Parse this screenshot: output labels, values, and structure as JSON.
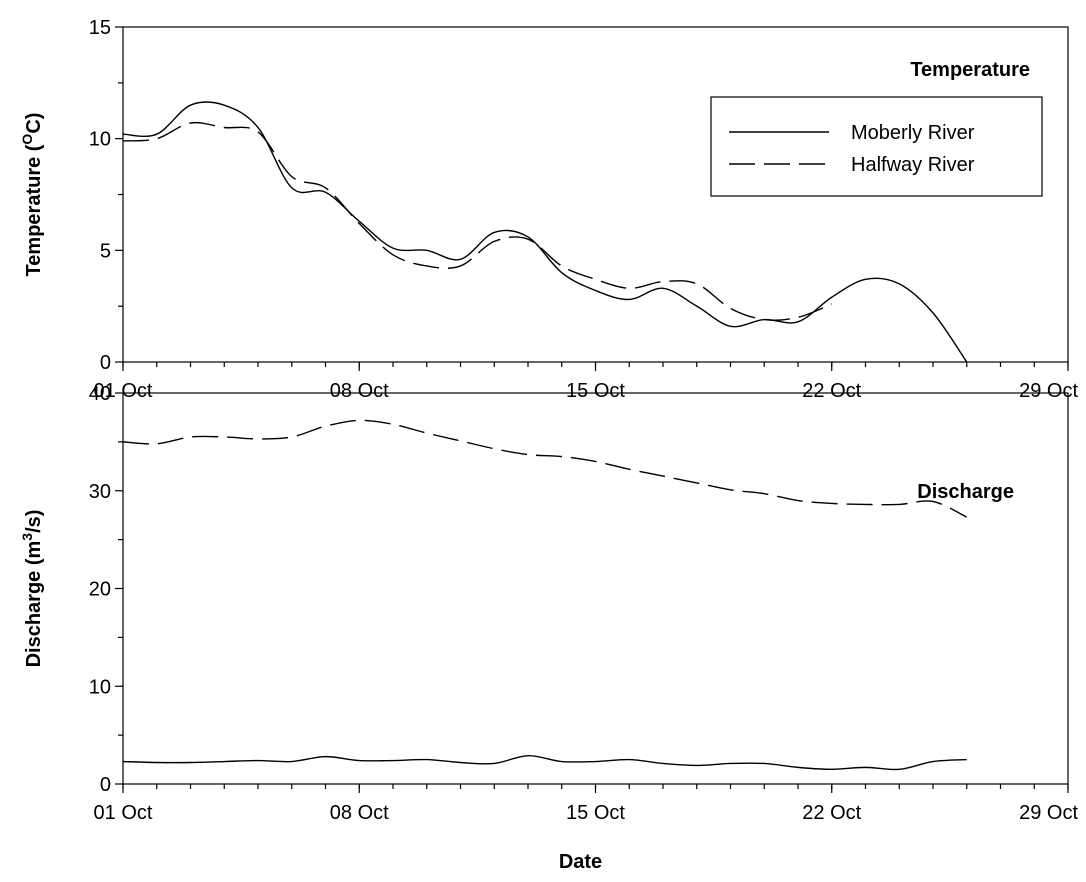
{
  "chart_data": [
    {
      "type": "line",
      "title": "Temperature",
      "xlabel": "",
      "ylabel": "Temperature (",
      "ylabel_sup": "O",
      "ylabel_tail": "C)",
      "xlim": [
        "2000-10-01",
        "2000-10-29"
      ],
      "ylim": [
        0,
        15
      ],
      "y_ticks": [
        0,
        5,
        10,
        15
      ],
      "x_ticks": [
        "01 Oct",
        "08 Oct",
        "15 Oct",
        "22 Oct",
        "29 Oct"
      ],
      "x_tick_dates": [
        "2000-10-01",
        "2000-10-08",
        "2000-10-15",
        "2000-10-22",
        "2000-10-29"
      ],
      "grid": false,
      "legend": {
        "placement": "top-right",
        "entries": [
          "Moberly River",
          "Halfway River"
        ]
      },
      "series": [
        {
          "name": "Moberly River",
          "style": "solid",
          "x": [
            "2000-10-01",
            "2000-10-02",
            "2000-10-03",
            "2000-10-04",
            "2000-10-05",
            "2000-10-06",
            "2000-10-07",
            "2000-10-08",
            "2000-10-09",
            "2000-10-10",
            "2000-10-11",
            "2000-10-12",
            "2000-10-13",
            "2000-10-14",
            "2000-10-15",
            "2000-10-16",
            "2000-10-17",
            "2000-10-18",
            "2000-10-19",
            "2000-10-20",
            "2000-10-21",
            "2000-10-22",
            "2000-10-23",
            "2000-10-24",
            "2000-10-25",
            "2000-10-26"
          ],
          "y": [
            10.2,
            10.2,
            11.5,
            11.5,
            10.5,
            7.8,
            7.6,
            6.3,
            5.1,
            5.0,
            4.6,
            5.8,
            5.6,
            4.0,
            3.2,
            2.8,
            3.3,
            2.5,
            1.6,
            1.9,
            1.8,
            2.9,
            3.7,
            3.5,
            2.2,
            0.0
          ]
        },
        {
          "name": "Halfway River",
          "style": "dashed",
          "x": [
            "2000-10-01",
            "2000-10-02",
            "2000-10-03",
            "2000-10-04",
            "2000-10-05",
            "2000-10-06",
            "2000-10-07",
            "2000-10-08",
            "2000-10-09",
            "2000-10-10",
            "2000-10-11",
            "2000-10-12",
            "2000-10-13",
            "2000-10-14",
            "2000-10-15",
            "2000-10-16",
            "2000-10-17",
            "2000-10-18",
            "2000-10-19",
            "2000-10-20",
            "2000-10-21",
            "2000-10-22"
          ],
          "y": [
            9.9,
            10.0,
            10.7,
            10.5,
            10.3,
            8.3,
            7.8,
            6.2,
            4.8,
            4.3,
            4.3,
            5.4,
            5.5,
            4.3,
            3.7,
            3.3,
            3.6,
            3.5,
            2.4,
            1.9,
            2.0,
            2.6
          ]
        }
      ]
    },
    {
      "type": "line",
      "title": "Discharge",
      "xlabel": "Date",
      "ylabel": "Discharge (m",
      "ylabel_sup": "3",
      "ylabel_tail": "/s)",
      "xlim": [
        "2000-10-01",
        "2000-10-29"
      ],
      "ylim": [
        0,
        40
      ],
      "y_ticks": [
        0,
        10,
        20,
        30,
        40
      ],
      "x_ticks": [
        "01 Oct",
        "08 Oct",
        "15 Oct",
        "22 Oct",
        "29 Oct"
      ],
      "x_tick_dates": [
        "2000-10-01",
        "2000-10-08",
        "2000-10-15",
        "2000-10-22",
        "2000-10-29"
      ],
      "grid": false,
      "series": [
        {
          "name": "Halfway River",
          "style": "dashed",
          "x": [
            "2000-10-01",
            "2000-10-02",
            "2000-10-03",
            "2000-10-04",
            "2000-10-05",
            "2000-10-06",
            "2000-10-07",
            "2000-10-08",
            "2000-10-09",
            "2000-10-10",
            "2000-10-11",
            "2000-10-12",
            "2000-10-13",
            "2000-10-14",
            "2000-10-15",
            "2000-10-16",
            "2000-10-17",
            "2000-10-18",
            "2000-10-19",
            "2000-10-20",
            "2000-10-21",
            "2000-10-22",
            "2000-10-23",
            "2000-10-24",
            "2000-10-25",
            "2000-10-26"
          ],
          "y": [
            35.0,
            34.8,
            35.5,
            35.5,
            35.3,
            35.5,
            36.6,
            37.2,
            36.8,
            35.9,
            35.1,
            34.3,
            33.7,
            33.5,
            33.0,
            32.2,
            31.5,
            30.8,
            30.1,
            29.7,
            29.0,
            28.7,
            28.6,
            28.6,
            28.9,
            27.3
          ]
        },
        {
          "name": "Moberly River",
          "style": "solid",
          "x": [
            "2000-10-01",
            "2000-10-02",
            "2000-10-03",
            "2000-10-04",
            "2000-10-05",
            "2000-10-06",
            "2000-10-07",
            "2000-10-08",
            "2000-10-09",
            "2000-10-10",
            "2000-10-11",
            "2000-10-12",
            "2000-10-13",
            "2000-10-14",
            "2000-10-15",
            "2000-10-16",
            "2000-10-17",
            "2000-10-18",
            "2000-10-19",
            "2000-10-20",
            "2000-10-21",
            "2000-10-22",
            "2000-10-23",
            "2000-10-24",
            "2000-10-25",
            "2000-10-26"
          ],
          "y": [
            2.3,
            2.2,
            2.2,
            2.3,
            2.4,
            2.3,
            2.8,
            2.4,
            2.4,
            2.5,
            2.2,
            2.1,
            2.9,
            2.3,
            2.3,
            2.5,
            2.1,
            1.9,
            2.1,
            2.1,
            1.7,
            1.5,
            1.7,
            1.5,
            2.3,
            2.5
          ]
        }
      ]
    }
  ]
}
